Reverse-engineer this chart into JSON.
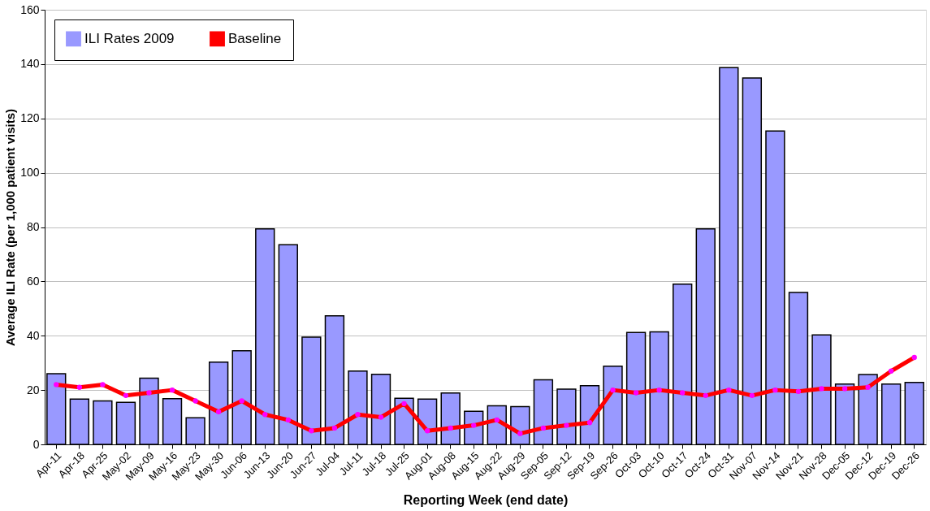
{
  "chart_data": {
    "type": "bar",
    "xlabel": "Reporting Week (end date)",
    "ylabel": "Average ILI Rate (per 1,000 patient visits)",
    "categories": [
      "Apr-11",
      "Apr-18",
      "Apr-25",
      "May-02",
      "May-09",
      "May-16",
      "May-23",
      "May-30",
      "Jun-06",
      "Jun-13",
      "Jun-20",
      "Jun-27",
      "Jul-04",
      "Jul-11",
      "Jul-18",
      "Jul-25",
      "Aug-01",
      "Aug-08",
      "Aug-15",
      "Aug-22",
      "Aug-29",
      "Sep-05",
      "Sep-12",
      "Sep-19",
      "Sep-26",
      "Oct-03",
      "Oct-10",
      "Oct-17",
      "Oct-24",
      "Oct-31",
      "Nov-07",
      "Nov-14",
      "Nov-21",
      "Nov-28",
      "Dec-05",
      "Dec-12",
      "Dec-19",
      "Dec-26"
    ],
    "series": [
      {
        "name": "ILI Rates 2009",
        "color": "#9999ff",
        "values": [
          26,
          16.7,
          16,
          15.5,
          24.4,
          16.8,
          9.8,
          30.3,
          34.5,
          79.3,
          73.5,
          39.5,
          47.3,
          27,
          25.8,
          17,
          16.7,
          18.9,
          12.2,
          14.2,
          13.9,
          23.8,
          20.3,
          21.6,
          28.8,
          41.2,
          41.4,
          59,
          79.3,
          138.7,
          134.9,
          115.4,
          55.9,
          40.3,
          22.2,
          25.7,
          22.2,
          22.8
        ]
      },
      {
        "name": "Baseline",
        "type": "line",
        "color": "#ff0000",
        "values": [
          22,
          21,
          22,
          18,
          19,
          20,
          16,
          12,
          16,
          11,
          9,
          5,
          6,
          11,
          10,
          15,
          5,
          6,
          7,
          9,
          4,
          6,
          7,
          8,
          20,
          19,
          20,
          19,
          18,
          20,
          18,
          20,
          19.5,
          20.5,
          20.5,
          21,
          27,
          32
        ]
      }
    ],
    "ylim": [
      0,
      160
    ],
    "yticks": [
      0,
      20,
      40,
      60,
      80,
      100,
      120,
      140,
      160
    ],
    "grid": "y",
    "legend": "top left",
    "marker": "circle",
    "line_style": "solid"
  }
}
